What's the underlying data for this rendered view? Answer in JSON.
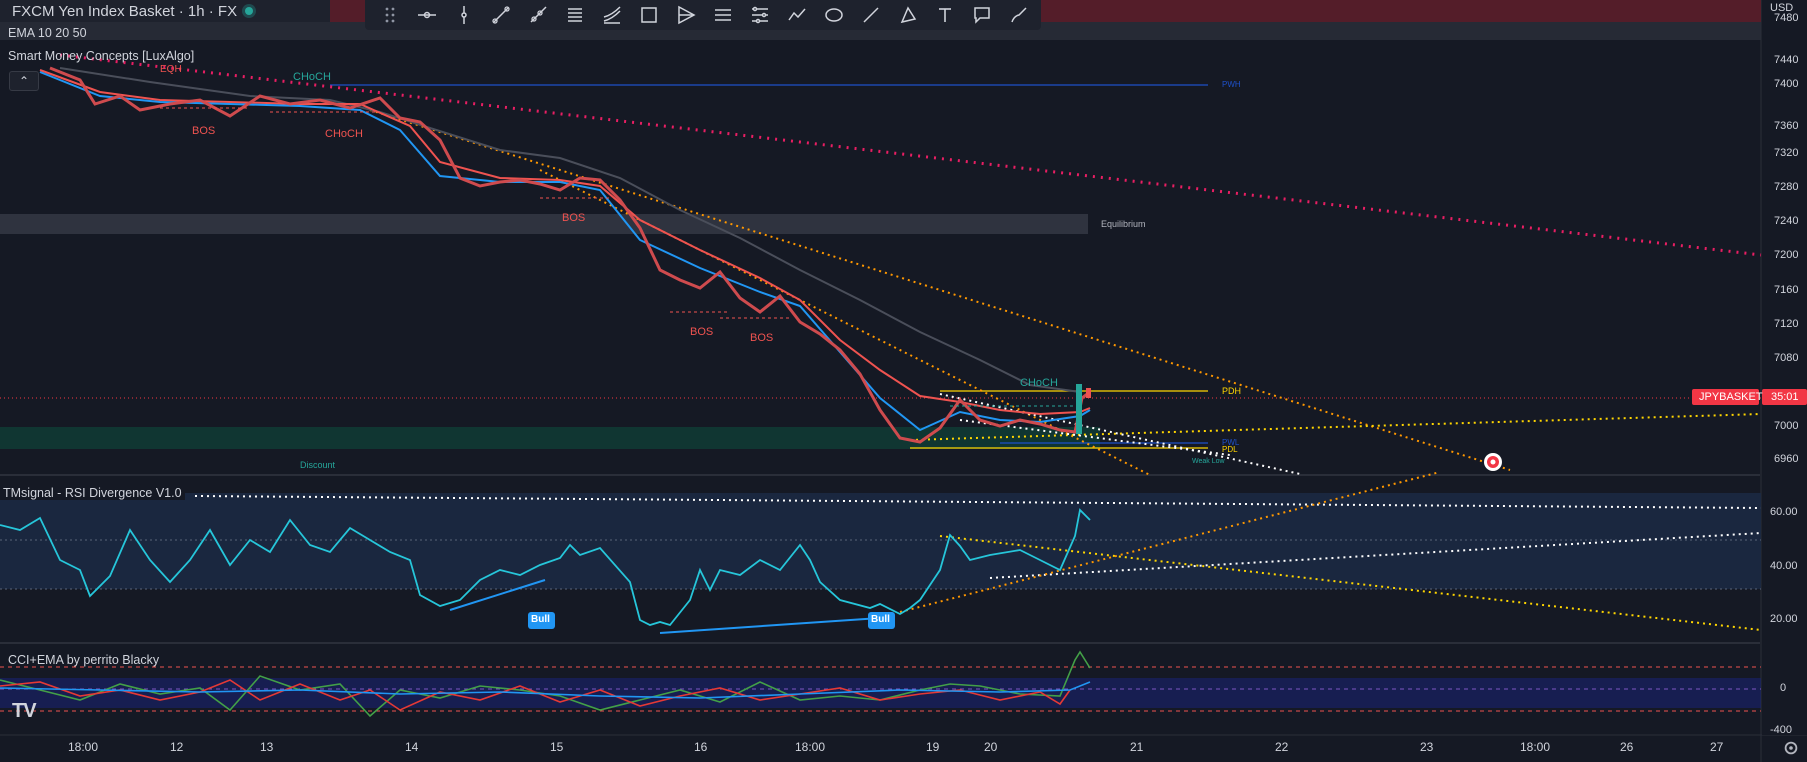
{
  "header": {
    "symbol_title": "FXCM Yen Index Basket · 1h · FX",
    "currency": "USD"
  },
  "indicators": {
    "ema": "EMA 10 20 50",
    "smc": "Smart Money Concepts [LuxAlgo]",
    "rsi": "TMsignal - RSI Divergence V1.0",
    "cci": "CCI+EMA by perrito Blacky"
  },
  "toolbar": {
    "tools": [
      "drag-icon",
      "crosshair-line-icon",
      "vertical-line-icon",
      "trend-line-icon",
      "ray-icon",
      "parallel-channel-icon",
      "regression-icon",
      "rectangle-icon",
      "pitchfork-icon",
      "fib-retracement-icon",
      "fib-extension-icon",
      "path-icon",
      "ellipse-icon",
      "line-icon",
      "triangle-icon",
      "text-icon",
      "callout-icon",
      "brush-icon"
    ]
  },
  "price_axis": {
    "main_ticks": [
      "7480",
      "7440",
      "7400",
      "7360",
      "7320",
      "7280",
      "7240",
      "7200",
      "7160",
      "7120",
      "7080",
      "7040",
      "7000",
      "6960"
    ],
    "rsi_ticks": [
      "60.00",
      "40.00",
      "20.00"
    ],
    "cci_ticks": [
      "0",
      "-400"
    ]
  },
  "time_axis": {
    "labels": [
      "18:00",
      "12",
      "13",
      "14",
      "15",
      "16",
      "18:00",
      "19",
      "20",
      "21",
      "22",
      "23",
      "18:00",
      "26",
      "27"
    ]
  },
  "price_badge": {
    "symbol": "JPYBASKET",
    "countdown": "35:01",
    "color": "#f23645"
  },
  "annotations": {
    "eqh": "EQH",
    "choch_top": "CHoCH",
    "bos1": "BOS",
    "choch_red": "CHoCH",
    "bos2": "BOS",
    "bos3": "BOS",
    "bos4": "BOS",
    "choch_green": "CHoCH",
    "pwh": "PWH",
    "pdh": "PDH",
    "pdl": "PDL",
    "pwl": "PWL",
    "weak_low": "Weak Low",
    "equilibrium": "Equilibrium",
    "discount": "Discount",
    "bull1": "Bull",
    "bull2": "Bull"
  },
  "colors": {
    "background": "#151924",
    "up": "#26a69a",
    "down": "#ef5350",
    "ema_fast": "#2196f3",
    "ema_mid": "#ef5350",
    "ema_slow": "#4a4e5a",
    "rsi": "#26c6da",
    "accent_orange": "#ff9800",
    "accent_pink": "#e91e63",
    "accent_yellow": "#ffd600"
  }
}
